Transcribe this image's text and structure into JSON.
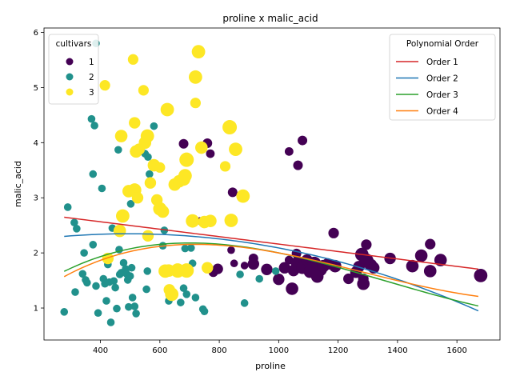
{
  "chart_data": {
    "type": "scatter",
    "title": "proline x malic_acid",
    "xlabel": "proline",
    "ylabel": "malic_acid",
    "xlim": [
      210,
      1745
    ],
    "ylim": [
      0.42,
      6.08
    ],
    "xticks": [
      400,
      600,
      800,
      1000,
      1200,
      1400,
      1600
    ],
    "yticks": [
      1,
      2,
      3,
      4,
      5,
      6
    ],
    "grid": false,
    "legend_cultivars": {
      "title": "cultivars",
      "placement": "top-left",
      "entries": [
        {
          "label": "1",
          "color": "#440154"
        },
        {
          "label": "2",
          "color": "#21918c"
        },
        {
          "label": "3",
          "color": "#fde725"
        }
      ]
    },
    "legend_poly": {
      "title": "Polynomial Order",
      "placement": "top-right",
      "entries": [
        {
          "label": "Order 1",
          "color": "#d62728"
        },
        {
          "label": "Order 2",
          "color": "#1f77b4"
        },
        {
          "label": "Order 3",
          "color": "#2ca02c"
        },
        {
          "label": "Order 4",
          "color": "#ff7f0e"
        }
      ]
    },
    "series": [
      {
        "cultivar": "1",
        "color": "#440154",
        "points": [
          [
            680,
            3.98
          ],
          [
            760,
            3.99
          ],
          [
            770,
            3.8
          ],
          [
            845,
            3.1
          ],
          [
            1035,
            3.84
          ],
          [
            1065,
            3.59
          ],
          [
            1080,
            4.04
          ],
          [
            1185,
            2.36
          ],
          [
            1295,
            2.15
          ],
          [
            1510,
            2.16
          ],
          [
            840,
            2.05
          ],
          [
            735,
            2.58
          ],
          [
            780,
            1.65
          ],
          [
            795,
            1.71
          ],
          [
            850,
            1.81
          ],
          [
            885,
            1.77
          ],
          [
            915,
            1.9
          ],
          [
            915,
            1.8
          ],
          [
            960,
            1.7
          ],
          [
            1000,
            1.52
          ],
          [
            1020,
            1.73
          ],
          [
            1035,
            1.87
          ],
          [
            1045,
            1.35
          ],
          [
            1050,
            1.68
          ],
          [
            1060,
            1.99
          ],
          [
            1065,
            1.81
          ],
          [
            1080,
            1.73
          ],
          [
            1095,
            1.87
          ],
          [
            1105,
            1.66
          ],
          [
            1120,
            1.81
          ],
          [
            1130,
            1.57
          ],
          [
            1140,
            1.7
          ],
          [
            1150,
            1.76
          ],
          [
            1165,
            1.8
          ],
          [
            1190,
            1.76
          ],
          [
            1235,
            1.53
          ],
          [
            1260,
            1.65
          ],
          [
            1270,
            1.75
          ],
          [
            1280,
            1.97
          ],
          [
            1285,
            1.53
          ],
          [
            1285,
            1.44
          ],
          [
            1295,
            1.86
          ],
          [
            1310,
            1.78
          ],
          [
            1320,
            1.73
          ],
          [
            1375,
            1.9
          ],
          [
            1450,
            1.76
          ],
          [
            1480,
            1.95
          ],
          [
            1510,
            1.67
          ],
          [
            1545,
            1.87
          ],
          [
            1680,
            1.59
          ]
        ],
        "sizes": [
          1.0,
          1.0,
          0.9,
          1.0,
          0.9,
          1.0,
          1.0,
          1.1,
          1.1,
          1.1,
          0.8,
          0.8,
          1.0,
          1.1,
          0.8,
          0.8,
          1.0,
          1.2,
          1.2,
          1.2,
          1.2,
          0.9,
          1.3,
          1.2,
          1.0,
          1.5,
          1.3,
          1.2,
          1.3,
          1.4,
          1.3,
          1.4,
          1.3,
          1.2,
          1.3,
          1.1,
          1.2,
          1.2,
          1.4,
          1.1,
          1.3,
          1.5,
          1.3,
          1.2,
          1.2,
          1.3,
          1.3,
          1.3,
          1.3,
          1.4
        ]
      },
      {
        "cultivar": "2",
        "color": "#21918c",
        "points": [
          [
            278,
            0.93
          ],
          [
            290,
            2.83
          ],
          [
            312,
            2.55
          ],
          [
            315,
            1.29
          ],
          [
            320,
            2.44
          ],
          [
            340,
            1.62
          ],
          [
            345,
            2.0
          ],
          [
            350,
            1.51
          ],
          [
            355,
            1.46
          ],
          [
            370,
            4.43
          ],
          [
            375,
            3.43
          ],
          [
            375,
            2.15
          ],
          [
            380,
            4.31
          ],
          [
            385,
            5.8
          ],
          [
            385,
            1.4
          ],
          [
            392,
            0.91
          ],
          [
            405,
            3.17
          ],
          [
            410,
            1.53
          ],
          [
            415,
            1.44
          ],
          [
            420,
            1.13
          ],
          [
            425,
            1.79
          ],
          [
            430,
            1.47
          ],
          [
            435,
            0.74
          ],
          [
            440,
            2.45
          ],
          [
            445,
            1.49
          ],
          [
            450,
            1.37
          ],
          [
            455,
            0.99
          ],
          [
            460,
            3.87
          ],
          [
            463,
            2.06
          ],
          [
            465,
            1.61
          ],
          [
            470,
            1.64
          ],
          [
            478,
            1.82
          ],
          [
            485,
            1.71
          ],
          [
            488,
            1.62
          ],
          [
            492,
            1.51
          ],
          [
            495,
            1.02
          ],
          [
            500,
            1.58
          ],
          [
            502,
            2.89
          ],
          [
            505,
            1.73
          ],
          [
            508,
            1.19
          ],
          [
            512,
            3.84
          ],
          [
            515,
            1.03
          ],
          [
            520,
            0.9
          ],
          [
            550,
            3.8
          ],
          [
            555,
            1.34
          ],
          [
            558,
            1.67
          ],
          [
            560,
            3.74
          ],
          [
            565,
            3.43
          ],
          [
            580,
            4.3
          ],
          [
            610,
            2.13
          ],
          [
            615,
            2.41
          ],
          [
            630,
            1.13
          ],
          [
            645,
            1.21
          ],
          [
            655,
            1.7
          ],
          [
            670,
            1.1
          ],
          [
            680,
            1.36
          ],
          [
            685,
            2.08
          ],
          [
            690,
            1.25
          ],
          [
            705,
            2.09
          ],
          [
            710,
            1.81
          ],
          [
            720,
            1.19
          ],
          [
            745,
            0.98
          ],
          [
            750,
            0.94
          ],
          [
            870,
            1.61
          ],
          [
            885,
            1.09
          ],
          [
            935,
            1.53
          ],
          [
            990,
            1.67
          ]
        ],
        "sizes": [
          0.8,
          0.8,
          0.8,
          0.8,
          0.8,
          0.8,
          0.8,
          0.8,
          0.8,
          0.8,
          0.8,
          0.8,
          0.8,
          0.8,
          0.8,
          0.8,
          0.8,
          0.8,
          0.8,
          0.8,
          0.8,
          0.8,
          0.8,
          0.8,
          0.8,
          0.8,
          0.8,
          0.8,
          0.8,
          0.8,
          0.8,
          0.8,
          0.8,
          0.8,
          0.8,
          0.8,
          0.8,
          0.8,
          0.8,
          0.8,
          0.8,
          0.8,
          0.8,
          0.8,
          0.8,
          0.8,
          0.8,
          0.8,
          0.8,
          0.8,
          0.8,
          0.8,
          0.8,
          0.8,
          0.8,
          0.8,
          0.8,
          0.8,
          0.8,
          0.8,
          0.8,
          0.8,
          0.8,
          0.8,
          0.8,
          0.8,
          0.8
        ]
      },
      {
        "cultivar": "3",
        "color": "#fde725",
        "points": [
          [
            415,
            5.04
          ],
          [
            425,
            1.9
          ],
          [
            465,
            2.4
          ],
          [
            470,
            4.12
          ],
          [
            475,
            2.67
          ],
          [
            495,
            3.12
          ],
          [
            510,
            5.51
          ],
          [
            515,
            4.36
          ],
          [
            520,
            3.84
          ],
          [
            515,
            3.14
          ],
          [
            525,
            3.0
          ],
          [
            530,
            3.88
          ],
          [
            545,
            4.95
          ],
          [
            550,
            4.0
          ],
          [
            558,
            4.12
          ],
          [
            560,
            2.31
          ],
          [
            568,
            3.27
          ],
          [
            580,
            3.59
          ],
          [
            590,
            2.96
          ],
          [
            600,
            3.55
          ],
          [
            600,
            2.8
          ],
          [
            610,
            2.75
          ],
          [
            618,
            1.67
          ],
          [
            625,
            4.6
          ],
          [
            630,
            1.68
          ],
          [
            632,
            1.33
          ],
          [
            640,
            1.25
          ],
          [
            650,
            3.24
          ],
          [
            660,
            1.68
          ],
          [
            665,
            3.3
          ],
          [
            680,
            3.34
          ],
          [
            685,
            3.4
          ],
          [
            690,
            3.69
          ],
          [
            690,
            1.68
          ],
          [
            710,
            2.58
          ],
          [
            720,
            4.72
          ],
          [
            720,
            5.19
          ],
          [
            730,
            5.65
          ],
          [
            740,
            3.91
          ],
          [
            750,
            2.56
          ],
          [
            760,
            1.73
          ],
          [
            770,
            2.58
          ],
          [
            820,
            3.57
          ],
          [
            835,
            4.28
          ],
          [
            840,
            2.59
          ],
          [
            855,
            3.88
          ],
          [
            880,
            3.03
          ]
        ],
        "sizes": [
          1.1,
          1.2,
          1.3,
          1.3,
          1.4,
          1.3,
          1.1,
          1.2,
          1.3,
          1.4,
          1.2,
          1.2,
          1.1,
          1.3,
          1.4,
          1.2,
          1.2,
          1.3,
          1.2,
          1.1,
          1.4,
          1.3,
          1.4,
          1.4,
          1.3,
          1.2,
          1.4,
          1.3,
          1.5,
          1.3,
          1.4,
          1.4,
          1.5,
          1.5,
          1.4,
          1.1,
          1.4,
          1.4,
          1.3,
          1.3,
          1.2,
          1.3,
          1.1,
          1.5,
          1.4,
          1.4,
          1.4
        ]
      }
    ],
    "fits": [
      {
        "order": 1,
        "color": "#d62728",
        "coeffs": [
          2.835,
          -0.000675
        ]
      },
      {
        "order": 2,
        "color": "#1f77b4",
        "coeffs": [
          2.1,
          0.001,
          -1.01e-06
        ]
      },
      {
        "order": 3,
        "color": "#2ca02c",
        "coeffs": [
          0.6,
          0.0051,
          -4.9e-06,
          1.2e-09
        ]
      },
      {
        "order": 4,
        "color": "#ff7f0e",
        "coeffs": [
          0.4,
          0.0056,
          -5.4e-06,
          1.4e-09,
          0
        ]
      }
    ],
    "fit_xrange": [
      278,
      1672
    ]
  }
}
